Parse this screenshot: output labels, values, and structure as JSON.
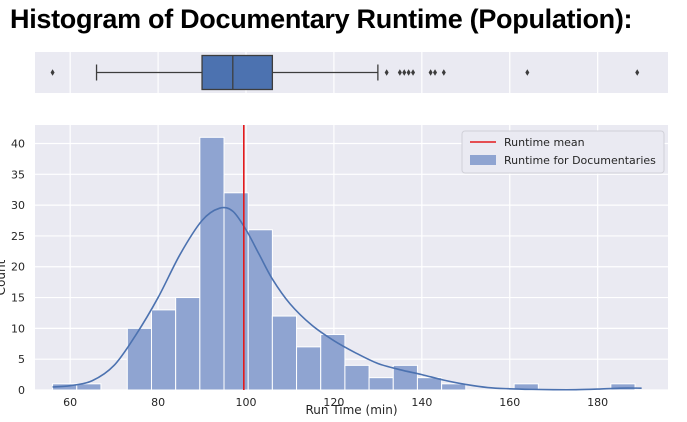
{
  "chart_data": {
    "title": "Histogram of Documentary Runtime (Population):",
    "boxplot": {
      "type": "box",
      "whisker_low": 66,
      "q1": 90,
      "median": 97,
      "q3": 106,
      "whisker_high": 130,
      "outliers": [
        56,
        132,
        135,
        136,
        137,
        138,
        142,
        143,
        145,
        164,
        189
      ]
    },
    "histogram": {
      "type": "bar",
      "xlabel": "Run Time (min)",
      "ylabel": "Count",
      "xlim": [
        52,
        196
      ],
      "ylim": [
        0,
        43
      ],
      "xticks": [
        60,
        80,
        100,
        120,
        140,
        160,
        180
      ],
      "yticks": [
        0,
        5,
        10,
        15,
        20,
        25,
        30,
        35,
        40
      ],
      "bin_width": 5.5,
      "bins": [
        {
          "x0": 56.0,
          "count": 1
        },
        {
          "x0": 61.5,
          "count": 1
        },
        {
          "x0": 73.0,
          "count": 10
        },
        {
          "x0": 78.5,
          "count": 13
        },
        {
          "x0": 84.0,
          "count": 15
        },
        {
          "x0": 89.5,
          "count": 41
        },
        {
          "x0": 95.0,
          "count": 32
        },
        {
          "x0": 100.5,
          "count": 26
        },
        {
          "x0": 106.0,
          "count": 12
        },
        {
          "x0": 111.5,
          "count": 7
        },
        {
          "x0": 117.0,
          "count": 9
        },
        {
          "x0": 122.5,
          "count": 4
        },
        {
          "x0": 128.0,
          "count": 2
        },
        {
          "x0": 133.5,
          "count": 4
        },
        {
          "x0": 139.0,
          "count": 2
        },
        {
          "x0": 144.5,
          "count": 1
        },
        {
          "x0": 161.0,
          "count": 1
        },
        {
          "x0": 183.0,
          "count": 1
        }
      ],
      "mean": 99.5,
      "kde": [
        [
          56,
          0.5
        ],
        [
          60,
          0.7
        ],
        [
          65,
          1.5
        ],
        [
          70,
          4
        ],
        [
          75,
          9
        ],
        [
          80,
          15
        ],
        [
          85,
          22
        ],
        [
          90,
          27.5
        ],
        [
          94,
          29.5
        ],
        [
          97,
          29
        ],
        [
          100,
          26
        ],
        [
          103,
          22
        ],
        [
          106,
          18
        ],
        [
          110,
          14
        ],
        [
          115,
          10.5
        ],
        [
          120,
          8
        ],
        [
          125,
          6
        ],
        [
          130,
          4.3
        ],
        [
          135,
          3.3
        ],
        [
          140,
          2.5
        ],
        [
          145,
          1.6
        ],
        [
          150,
          0.9
        ],
        [
          155,
          0.4
        ],
        [
          160,
          0.2
        ],
        [
          165,
          0.1
        ],
        [
          170,
          0.05
        ],
        [
          175,
          0.05
        ],
        [
          180,
          0.15
        ],
        [
          185,
          0.3
        ],
        [
          190,
          0.3
        ]
      ],
      "legend": [
        {
          "label": "Runtime mean",
          "kind": "line",
          "color": "#e31a1c"
        },
        {
          "label": "Runtime for Documentaries",
          "kind": "patch",
          "color": "#8fa4d1"
        }
      ],
      "legend_position": "top-right"
    },
    "colors": {
      "panel_bg": "#eaeaf2",
      "grid": "#ffffff",
      "bar_fill": "#8fa4d1",
      "box_fill": "#4c72b0",
      "kde_line": "#4c72b0",
      "mean_line": "#e31a1c"
    }
  }
}
